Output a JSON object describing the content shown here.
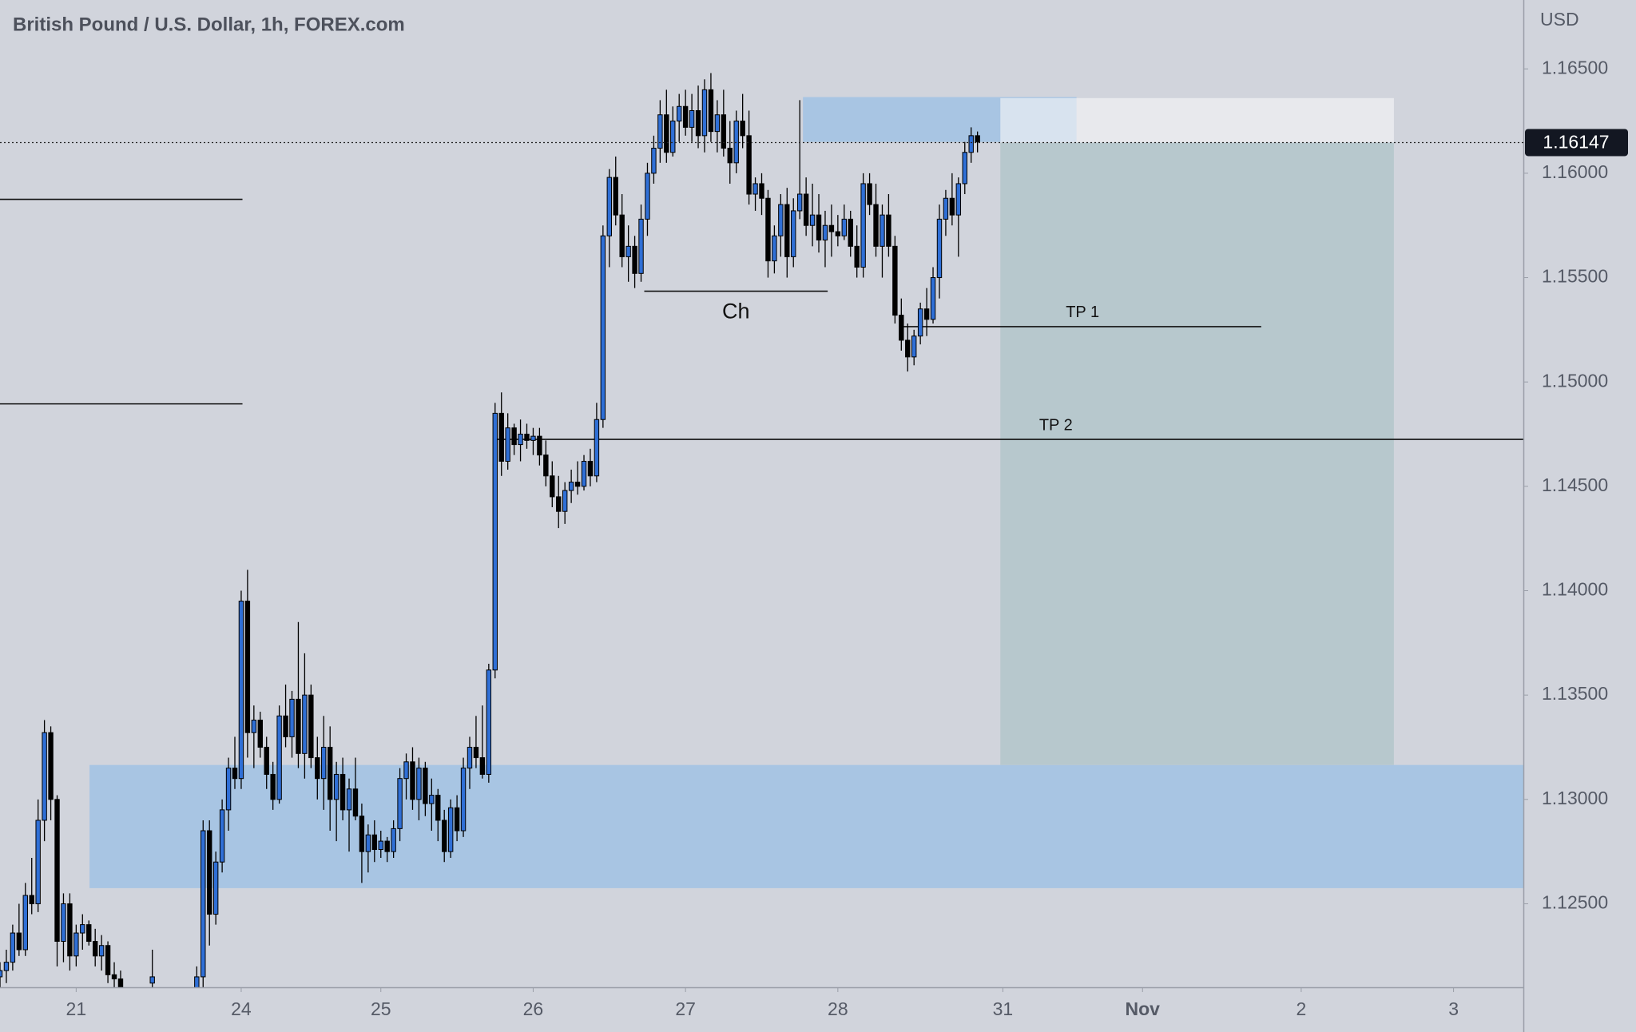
{
  "chart_data": {
    "type": "candlestick",
    "title": "British Pound / U.S. Dollar, 1h, FOREX.com",
    "currency": "USD",
    "current_price": 1.16147,
    "xlim": [
      0,
      240
    ],
    "xticks": [
      {
        "value": 12,
        "label": "21"
      },
      {
        "value": 38,
        "label": "24"
      },
      {
        "value": 60,
        "label": "25"
      },
      {
        "value": 84,
        "label": "26"
      },
      {
        "value": 108,
        "label": "27"
      },
      {
        "value": 132,
        "label": "28"
      },
      {
        "value": 158,
        "label": "31"
      },
      {
        "value": 180,
        "label": "Nov",
        "bold": true
      },
      {
        "value": 205,
        "label": "2"
      },
      {
        "value": 229,
        "label": "3"
      }
    ],
    "ylim": [
      1.121,
      1.1683
    ],
    "yticks": [
      {
        "value": 1.125,
        "label": "1.12500"
      },
      {
        "value": 1.13,
        "label": "1.13000"
      },
      {
        "value": 1.135,
        "label": "1.13500"
      },
      {
        "value": 1.14,
        "label": "1.14000"
      },
      {
        "value": 1.145,
        "label": "1.14500"
      },
      {
        "value": 1.15,
        "label": "1.15000"
      },
      {
        "value": 1.155,
        "label": "1.15500"
      },
      {
        "value": 1.16,
        "label": "1.16000"
      },
      {
        "value": 1.165,
        "label": "1.16500"
      }
    ],
    "up_color": "#2f6fd6",
    "down_color": "#000000",
    "zones": [
      {
        "top": 1.13165,
        "bottom": 1.12575,
        "x": [
          14.1,
          240
        ],
        "color": "#a8c5e3"
      },
      {
        "top": 1.16365,
        "bottom": 1.1615,
        "x": [
          126.5,
          169.6
        ],
        "color": "#a8c5e3"
      }
    ],
    "position": {
      "entry": 1.16147,
      "stop": 1.1636,
      "target": 1.13165,
      "x": [
        157.6,
        219.6
      ],
      "stop_color": "rgba(245,245,247,0.62)",
      "target_color": "#b7c8cd"
    },
    "levels": [
      {
        "price": 1.15875,
        "x": [
          0,
          38.2
        ]
      },
      {
        "price": 1.14895,
        "x": [
          0,
          38.2
        ]
      },
      {
        "price": 1.15435,
        "x": [
          101.5,
          130.4
        ],
        "label": "Ch",
        "label_side": "below"
      },
      {
        "price": 1.15265,
        "x": [
          142.4,
          198.7
        ],
        "label": "TP 1",
        "label_side": "above"
      },
      {
        "price": 1.14725,
        "x": [
          78.1,
          240
        ],
        "label": "TP 2",
        "label_side": "above"
      }
    ],
    "candles": {
      "x": [
        0,
        1,
        2,
        3,
        4,
        5,
        6,
        7,
        8,
        9,
        10,
        11,
        12,
        13,
        14,
        15,
        16,
        17,
        18,
        19,
        24,
        31,
        32,
        33,
        34,
        35,
        36,
        37,
        38,
        39,
        40,
        41,
        42,
        43,
        44,
        45,
        46,
        47,
        48,
        49,
        50,
        51,
        52,
        53,
        54,
        55,
        56,
        57,
        58,
        59,
        60,
        61,
        62,
        63,
        64,
        65,
        66,
        67,
        68,
        69,
        70,
        71,
        72,
        73,
        74,
        75,
        76,
        77,
        78,
        79,
        80,
        81,
        82,
        83,
        84,
        85,
        86,
        87,
        88,
        89,
        90,
        91,
        92,
        93,
        94,
        95,
        96,
        97,
        98,
        99,
        100,
        101,
        102,
        103,
        104,
        105,
        106,
        107,
        108,
        109,
        110,
        111,
        112,
        113,
        114,
        115,
        116,
        117,
        118,
        119,
        120,
        121,
        122,
        123,
        124,
        125,
        126,
        127,
        128,
        129,
        130,
        131,
        132,
        133,
        134,
        135,
        136,
        137,
        138,
        139,
        140,
        141,
        142,
        143,
        144,
        145,
        146,
        147,
        148,
        149,
        150,
        151,
        152,
        153,
        154
      ],
      "open": [
        1.1215,
        1.1218,
        1.1222,
        1.1236,
        1.1228,
        1.1254,
        1.125,
        1.129,
        1.1332,
        1.13,
        1.1232,
        1.125,
        1.1225,
        1.1236,
        1.124,
        1.1232,
        1.1225,
        1.123,
        1.1216,
        1.1214,
        1.1212,
        1.1205,
        1.1215,
        1.1285,
        1.1245,
        1.127,
        1.1295,
        1.1315,
        1.131,
        1.1395,
        1.1332,
        1.1338,
        1.1325,
        1.1312,
        1.13,
        1.134,
        1.133,
        1.1348,
        1.1322,
        1.135,
        1.132,
        1.131,
        1.1325,
        1.13,
        1.1312,
        1.1295,
        1.1305,
        1.1292,
        1.1275,
        1.1283,
        1.1276,
        1.128,
        1.1275,
        1.1286,
        1.131,
        1.1318,
        1.13,
        1.1315,
        1.1298,
        1.1302,
        1.129,
        1.1275,
        1.1296,
        1.1285,
        1.1315,
        1.1325,
        1.132,
        1.1312,
        1.1362,
        1.1485,
        1.1462,
        1.1478,
        1.147,
        1.1475,
        1.1472,
        1.1474,
        1.1465,
        1.1455,
        1.1445,
        1.1438,
        1.1448,
        1.1452,
        1.145,
        1.1462,
        1.1455,
        1.1482,
        1.157,
        1.1598,
        1.158,
        1.156,
        1.1565,
        1.1552,
        1.1578,
        1.16,
        1.1612,
        1.1628,
        1.161,
        1.1625,
        1.1632,
        1.1622,
        1.163,
        1.1618,
        1.164,
        1.162,
        1.1628,
        1.1612,
        1.1605,
        1.1625,
        1.1618,
        1.159,
        1.1595,
        1.1588,
        1.1558,
        1.157,
        1.1585,
        1.156,
        1.1582,
        1.159,
        1.1575,
        1.158,
        1.1568,
        1.1575,
        1.1572,
        1.157,
        1.1578,
        1.1565,
        1.1555,
        1.1595,
        1.1585,
        1.1565,
        1.158,
        1.1565,
        1.1532,
        1.152,
        1.1512,
        1.1522,
        1.1535,
        1.153,
        1.155,
        1.1578,
        1.1588,
        1.158,
        1.1595,
        1.161,
        1.1618
      ],
      "high": [
        1.1222,
        1.1228,
        1.124,
        1.125,
        1.126,
        1.1272,
        1.13,
        1.1338,
        1.1335,
        1.1302,
        1.1255,
        1.1255,
        1.124,
        1.1245,
        1.1242,
        1.1238,
        1.1235,
        1.1232,
        1.1222,
        1.1218,
        1.1228,
        1.122,
        1.129,
        1.129,
        1.1275,
        1.13,
        1.132,
        1.133,
        1.14,
        1.141,
        1.1345,
        1.1342,
        1.133,
        1.1318,
        1.1345,
        1.1355,
        1.1352,
        1.1385,
        1.137,
        1.1355,
        1.133,
        1.134,
        1.1335,
        1.1318,
        1.132,
        1.131,
        1.132,
        1.1298,
        1.1288,
        1.129,
        1.1285,
        1.1282,
        1.129,
        1.1315,
        1.1322,
        1.1325,
        1.132,
        1.1318,
        1.131,
        1.1305,
        1.1295,
        1.13,
        1.1302,
        1.132,
        1.133,
        1.134,
        1.1345,
        1.1365,
        1.149,
        1.1495,
        1.1485,
        1.148,
        1.1482,
        1.148,
        1.1478,
        1.1478,
        1.1472,
        1.1462,
        1.1455,
        1.1452,
        1.1458,
        1.1462,
        1.1465,
        1.1468,
        1.149,
        1.1575,
        1.1602,
        1.1608,
        1.159,
        1.1575,
        1.157,
        1.1585,
        1.1605,
        1.1618,
        1.1635,
        1.164,
        1.1632,
        1.1638,
        1.164,
        1.1638,
        1.1642,
        1.1645,
        1.1648,
        1.1635,
        1.164,
        1.1625,
        1.163,
        1.1638,
        1.163,
        1.1598,
        1.16,
        1.1592,
        1.1575,
        1.159,
        1.1593,
        1.1588,
        1.1635,
        1.1598,
        1.1595,
        1.159,
        1.1582,
        1.1585,
        1.158,
        1.1585,
        1.1582,
        1.1575,
        1.16,
        1.16,
        1.1595,
        1.1585,
        1.159,
        1.157,
        1.154,
        1.1528,
        1.1525,
        1.1538,
        1.1545,
        1.1555,
        1.1585,
        1.1592,
        1.16,
        1.1598,
        1.1615,
        1.1622,
        1.162
      ],
      "low": [
        1.121,
        1.1212,
        1.1218,
        1.1225,
        1.1225,
        1.1245,
        1.1246,
        1.128,
        1.129,
        1.122,
        1.1222,
        1.1218,
        1.122,
        1.1228,
        1.123,
        1.122,
        1.1218,
        1.1212,
        1.121,
        1.1208,
        1.1205,
        1.12,
        1.121,
        1.123,
        1.124,
        1.1265,
        1.1285,
        1.1305,
        1.1305,
        1.132,
        1.1315,
        1.132,
        1.1305,
        1.1295,
        1.1298,
        1.1325,
        1.132,
        1.1315,
        1.131,
        1.1315,
        1.13,
        1.1295,
        1.1285,
        1.128,
        1.129,
        1.1275,
        1.129,
        1.126,
        1.1265,
        1.127,
        1.1272,
        1.127,
        1.1272,
        1.128,
        1.13,
        1.1295,
        1.129,
        1.1292,
        1.1285,
        1.128,
        1.127,
        1.1272,
        1.128,
        1.1282,
        1.1305,
        1.1315,
        1.131,
        1.1308,
        1.1358,
        1.1455,
        1.1458,
        1.1465,
        1.1462,
        1.1468,
        1.1465,
        1.146,
        1.145,
        1.144,
        1.143,
        1.1432,
        1.1442,
        1.1446,
        1.1448,
        1.145,
        1.1452,
        1.1478,
        1.1555,
        1.1575,
        1.1555,
        1.1548,
        1.1545,
        1.1548,
        1.157,
        1.1595,
        1.1605,
        1.1605,
        1.1608,
        1.1615,
        1.1618,
        1.1615,
        1.1612,
        1.161,
        1.1615,
        1.161,
        1.1608,
        1.1595,
        1.16,
        1.1612,
        1.1585,
        1.1582,
        1.158,
        1.155,
        1.1552,
        1.156,
        1.155,
        1.1555,
        1.1578,
        1.157,
        1.1565,
        1.1562,
        1.1555,
        1.156,
        1.1565,
        1.1568,
        1.156,
        1.155,
        1.155,
        1.158,
        1.156,
        1.155,
        1.156,
        1.1528,
        1.1515,
        1.1505,
        1.1508,
        1.1518,
        1.1522,
        1.1528,
        1.154,
        1.157,
        1.1575,
        1.156,
        1.159,
        1.1605,
        1.161
      ],
      "close": [
        1.1218,
        1.1222,
        1.1236,
        1.1228,
        1.1254,
        1.125,
        1.129,
        1.1332,
        1.13,
        1.1232,
        1.125,
        1.1225,
        1.1236,
        1.124,
        1.1232,
        1.1225,
        1.123,
        1.1216,
        1.1214,
        1.121,
        1.1215,
        1.1215,
        1.1285,
        1.1245,
        1.127,
        1.1295,
        1.1315,
        1.131,
        1.1395,
        1.1332,
        1.1338,
        1.1325,
        1.1312,
        1.13,
        1.134,
        1.133,
        1.1348,
        1.1322,
        1.135,
        1.132,
        1.131,
        1.1325,
        1.13,
        1.1312,
        1.1295,
        1.1305,
        1.1292,
        1.1275,
        1.1283,
        1.1276,
        1.128,
        1.1275,
        1.1286,
        1.131,
        1.1318,
        1.13,
        1.1315,
        1.1298,
        1.1302,
        1.129,
        1.1275,
        1.1296,
        1.1285,
        1.1315,
        1.1325,
        1.132,
        1.1312,
        1.1362,
        1.1485,
        1.1462,
        1.1478,
        1.147,
        1.1475,
        1.1472,
        1.1474,
        1.1465,
        1.1455,
        1.1445,
        1.1438,
        1.1448,
        1.1452,
        1.145,
        1.1462,
        1.1455,
        1.1482,
        1.157,
        1.1598,
        1.158,
        1.156,
        1.1565,
        1.1552,
        1.1578,
        1.16,
        1.1612,
        1.1628,
        1.161,
        1.1625,
        1.1632,
        1.1622,
        1.163,
        1.1618,
        1.164,
        1.162,
        1.1628,
        1.1612,
        1.1605,
        1.1625,
        1.1618,
        1.159,
        1.1595,
        1.1588,
        1.1558,
        1.157,
        1.1585,
        1.156,
        1.1582,
        1.159,
        1.1575,
        1.158,
        1.1568,
        1.1575,
        1.1572,
        1.157,
        1.1578,
        1.1565,
        1.1555,
        1.1595,
        1.1585,
        1.1565,
        1.158,
        1.1565,
        1.1532,
        1.152,
        1.1512,
        1.1522,
        1.1535,
        1.153,
        1.155,
        1.1578,
        1.1588,
        1.158,
        1.1595,
        1.161,
        1.1618,
        1.1615
      ]
    }
  }
}
